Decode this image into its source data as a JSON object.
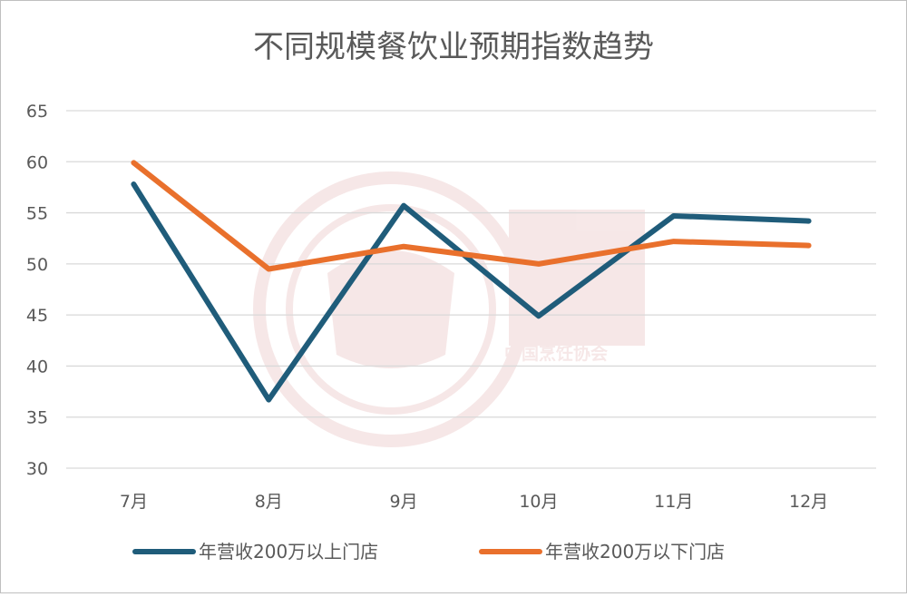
{
  "chart_data": {
    "type": "line",
    "title": "不同规模餐饮业预期指数趋势",
    "categories": [
      "7月",
      "8月",
      "9月",
      "10月",
      "11月",
      "12月"
    ],
    "ylim": [
      30,
      65
    ],
    "yticks": [
      65,
      60,
      55,
      50,
      45,
      40,
      35,
      30
    ],
    "grid": true,
    "legend_position": "bottom",
    "series": [
      {
        "name": "年营收200万以上门店",
        "color": "#1f5c7a",
        "values": [
          57.8,
          36.7,
          55.7,
          44.9,
          54.7,
          54.2
        ]
      },
      {
        "name": "年营收200万以下门店",
        "color": "#e9702c",
        "values": [
          59.9,
          49.5,
          51.7,
          50.0,
          52.2,
          51.8
        ]
      }
    ]
  },
  "watermark": {
    "text": "中国烹饪协会"
  }
}
